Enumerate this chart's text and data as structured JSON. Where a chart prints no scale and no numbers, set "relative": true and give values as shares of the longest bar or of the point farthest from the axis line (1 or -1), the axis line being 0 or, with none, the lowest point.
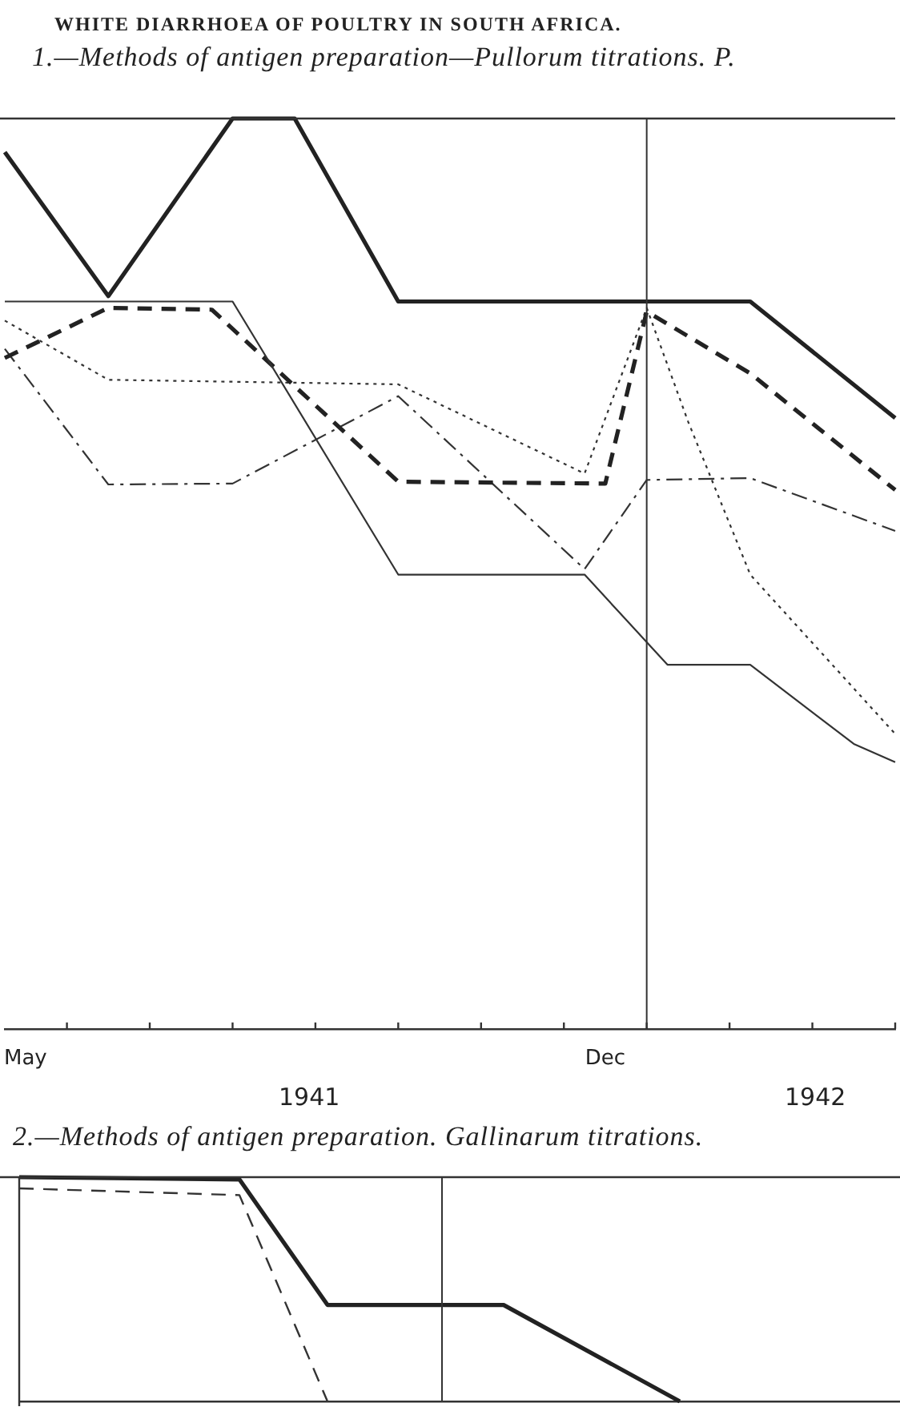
{
  "chart_data": [
    {
      "type": "line",
      "title": "WHITE DIARRHOEA OF POULTRY IN SOUTH AFRICA.",
      "subtitle": "1.—Methods of antigen preparation—Pullorum titrations. P.",
      "relative": true,
      "marker": "none",
      "categories": [
        null,
        "May",
        null,
        null,
        null,
        null,
        null,
        null,
        null,
        null,
        null,
        null,
        null,
        null,
        null,
        null,
        null,
        null,
        null,
        null,
        null,
        null,
        null,
        null,
        null,
        null,
        null,
        null,
        null,
        "Dec",
        null,
        null,
        null,
        null,
        null,
        null,
        null,
        null,
        null,
        null,
        null,
        null,
        null,
        null
      ],
      "annotations": [
        "1941",
        "1942"
      ],
      "series": [
        {
          "color": "#222222",
          "line_style": "solid",
          "values": [
            0.963,
            null,
            null,
            null,
            null,
            0.805,
            null,
            null,
            null,
            null,
            null,
            1,
            null,
            null,
            1,
            null,
            null,
            null,
            null,
            0.799,
            null,
            null,
            null,
            null,
            null,
            null,
            null,
            null,
            null,
            null,
            null,
            null,
            null,
            null,
            null,
            null,
            0.799,
            null,
            null,
            null,
            null,
            null,
            null,
            0.671
          ]
        },
        {
          "color": "#333333",
          "line_style": "solid",
          "values": [
            0.799,
            null,
            null,
            null,
            null,
            null,
            null,
            null,
            null,
            null,
            null,
            0.799,
            null,
            null,
            null,
            null,
            null,
            null,
            null,
            0.499,
            null,
            null,
            null,
            null,
            null,
            null,
            null,
            null,
            0.499,
            null,
            null,
            null,
            0.4,
            null,
            null,
            null,
            0.4,
            null,
            null,
            null,
            null,
            0.313,
            null,
            0.293
          ]
        },
        {
          "color": "#222222",
          "line_style": "dashed",
          "values": [
            0.737,
            null,
            null,
            null,
            null,
            0.792,
            null,
            null,
            null,
            null,
            0.79,
            null,
            null,
            null,
            null,
            null,
            null,
            null,
            null,
            0.601,
            null,
            null,
            null,
            null,
            null,
            null,
            null,
            null,
            null,
            0.599,
            null,
            0.788,
            null,
            null,
            null,
            null,
            0.72,
            null,
            null,
            null,
            null,
            null,
            null,
            0.592
          ]
        },
        {
          "color": "#333333",
          "line_style": "dotted",
          "values": [
            0.778,
            null,
            null,
            null,
            null,
            0.713,
            null,
            null,
            null,
            null,
            null,
            null,
            null,
            null,
            null,
            null,
            null,
            null,
            null,
            0.708,
            null,
            null,
            null,
            null,
            null,
            null,
            null,
            null,
            0.61,
            null,
            null,
            0.792,
            null,
            0.667,
            null,
            null,
            0.499,
            null,
            null,
            null,
            null,
            null,
            null,
            0.324
          ]
        },
        {
          "color": "#333333",
          "line_style": "dashdot",
          "values": [
            0.747,
            null,
            null,
            null,
            null,
            0.598,
            null,
            null,
            null,
            null,
            null,
            0.599,
            null,
            null,
            null,
            null,
            null,
            null,
            null,
            0.695,
            null,
            null,
            null,
            null,
            null,
            null,
            null,
            null,
            0.505,
            null,
            null,
            0.603,
            null,
            null,
            null,
            null,
            0.605,
            null,
            null,
            null,
            null,
            null,
            null,
            0.547
          ]
        }
      ]
    },
    {
      "type": "line",
      "title": "2.—Methods of antigen preparation. Gallinarum titrations.",
      "relative": true,
      "marker": "none",
      "tick_labels": false,
      "categories": [
        null,
        null,
        null,
        null,
        null,
        null,
        null,
        null,
        null,
        null,
        null,
        null,
        null,
        null,
        null,
        null,
        null,
        null,
        null,
        null,
        null
      ],
      "series": [
        {
          "color": "#222222",
          "line_style": "solid",
          "values": [
            1,
            null,
            null,
            null,
            null,
            0.99,
            null,
            0.43,
            null,
            null,
            null,
            0.43,
            null,
            null,
            null,
            0,
            null,
            null,
            null,
            null,
            null
          ]
        },
        {
          "color": "#333333",
          "line_style": "dashed",
          "values": [
            0.95,
            null,
            null,
            null,
            null,
            0.92,
            null,
            0,
            null,
            null,
            null,
            null,
            null,
            null,
            null,
            null,
            null,
            null,
            null,
            null,
            null
          ]
        }
      ]
    }
  ]
}
